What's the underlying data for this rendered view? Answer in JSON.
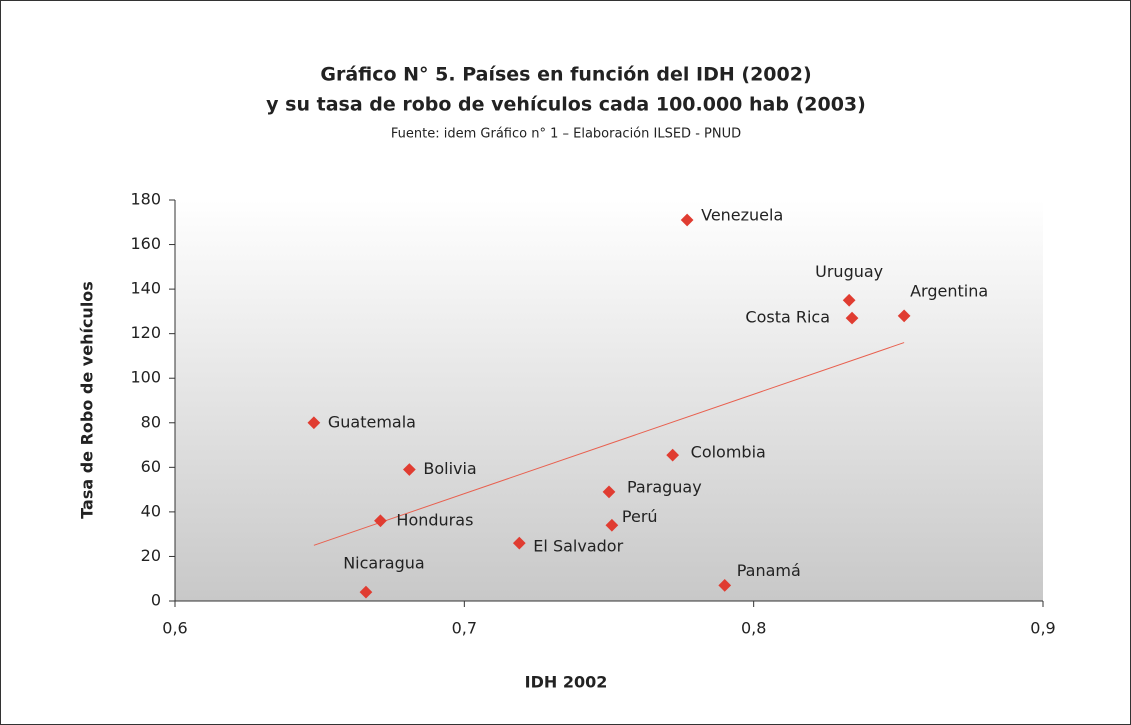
{
  "chart_data": {
    "type": "scatter",
    "title": [
      "Gráfico N° 5. Países en función del IDH (2002)",
      "y su tasa de robo de vehículos cada 100.000 hab (2003)"
    ],
    "subtitle": "Fuente: idem Gráfico n° 1 – Elaboración ILSED - PNUD",
    "xlabel": "IDH 2002",
    "ylabel": "Tasa de Robo de vehículos",
    "point_labels": [
      "Venezuela",
      "Uruguay",
      "Costa Rica",
      "Argentina",
      "Guatemala",
      "Bolivia",
      "Colombia",
      "Paraguay",
      "Perú",
      "Honduras",
      "El Salvador",
      "Nicaragua",
      "Panamá"
    ],
    "x": [
      0.777,
      0.833,
      0.834,
      0.852,
      0.648,
      0.681,
      0.772,
      0.75,
      0.751,
      0.671,
      0.719,
      0.666,
      0.79
    ],
    "series": [
      {
        "color": "#e03c31",
        "values": [
          171,
          135,
          127,
          128,
          80,
          59,
          65.5,
          49,
          34,
          36,
          26,
          4,
          7
        ]
      }
    ],
    "trendline": {
      "x": [
        0.648,
        0.852
      ],
      "values": [
        25,
        116
      ],
      "color": "#e8604f"
    },
    "xlim": [
      0.6,
      0.9
    ],
    "xticks": [
      {
        "value": 0.6,
        "label": "0,6"
      },
      {
        "value": 0.7,
        "label": "0,7"
      },
      {
        "value": 0.8,
        "label": "0,8"
      },
      {
        "value": 0.9,
        "label": "0,9"
      }
    ],
    "ylim": [
      0,
      180
    ],
    "yticks": [
      0,
      20,
      40,
      60,
      80,
      100,
      120,
      140,
      160,
      180
    ]
  }
}
